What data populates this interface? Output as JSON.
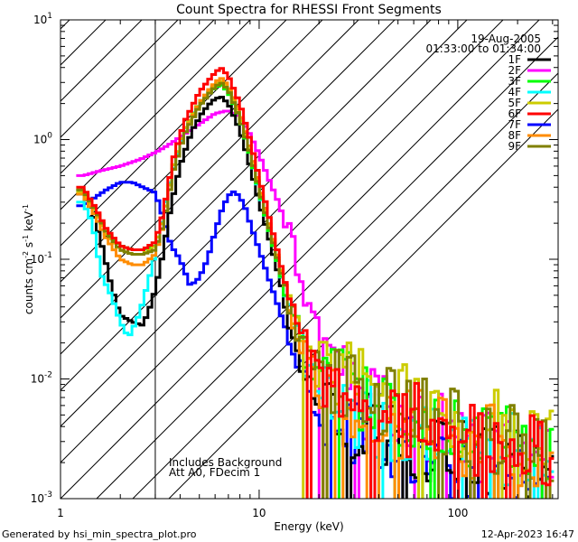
{
  "chart_data": {
    "type": "line",
    "title": "Count Spectra for RHESSI Front Segments",
    "xlabel": "Energy (keV)",
    "ylabel": {
      "main": "counts cm",
      "exp1": "-2",
      "mid1": " s",
      "exp2": "-1",
      "mid2": " keV",
      "exp3": "-1"
    },
    "x_scale": "log",
    "y_scale": "log",
    "xlim": [
      1.0,
      320.0
    ],
    "ylim": [
      0.001,
      10.0
    ],
    "x_ticks": [
      {
        "value": 1,
        "label": "1"
      },
      {
        "value": 10,
        "label": "10"
      },
      {
        "value": 100,
        "label": "100"
      }
    ],
    "y_ticks": [
      {
        "value": 0.001,
        "base": "10",
        "exp": "-3"
      },
      {
        "value": 0.01,
        "base": "10",
        "exp": "-2"
      },
      {
        "value": 0.1,
        "base": "10",
        "exp": "-1"
      },
      {
        "value": 1,
        "base": "10",
        "exp": "0"
      },
      {
        "value": 10,
        "base": "10",
        "exp": "1"
      }
    ],
    "shaded_region": {
      "x_range": [
        1.0,
        3.0
      ],
      "style": "hatched"
    },
    "annotations": {
      "date": "19-Aug-2005",
      "time_range": "01:33:00 to 01:34:00",
      "background_note": "Includes Background",
      "attenuator_note": "Att A0, FDecim 1"
    },
    "series": [
      {
        "name": "1F",
        "color": "#000000",
        "base": [
          [
            1.3,
            0.35
          ],
          [
            1.45,
            0.25
          ],
          [
            1.6,
            0.14
          ],
          [
            1.8,
            0.06
          ],
          [
            2.0,
            0.034
          ],
          [
            2.3,
            0.03
          ],
          [
            2.6,
            0.028
          ],
          [
            2.9,
            0.045
          ],
          [
            3.2,
            0.09
          ],
          [
            3.6,
            0.28
          ],
          [
            4.0,
            0.6
          ],
          [
            4.6,
            1.2
          ],
          [
            5.2,
            1.7
          ],
          [
            5.8,
            2.1
          ],
          [
            6.4,
            2.3
          ],
          [
            7.0,
            2.0
          ],
          [
            8.0,
            1.2
          ],
          [
            9.0,
            0.6
          ],
          [
            10.0,
            0.3
          ],
          [
            11.0,
            0.17
          ],
          [
            12.5,
            0.075
          ],
          [
            14.0,
            0.035
          ],
          [
            16.0,
            0.017
          ],
          [
            18.0,
            0.01
          ],
          [
            20.0,
            0.008
          ],
          [
            25.0,
            0.0055
          ],
          [
            30.0,
            0.0045
          ],
          [
            40.0,
            0.0038
          ],
          [
            50.0,
            0.0033
          ],
          [
            70.0,
            0.0028
          ],
          [
            100.0,
            0.0024
          ],
          [
            150.0,
            0.0021
          ],
          [
            200.0,
            0.0019
          ],
          [
            300.0,
            0.0016
          ]
        ]
      },
      {
        "name": "2F",
        "color": "#ff00ff",
        "base": [
          [
            1.3,
            0.5
          ],
          [
            1.6,
            0.55
          ],
          [
            2.0,
            0.6
          ],
          [
            2.5,
            0.68
          ],
          [
            3.0,
            0.78
          ],
          [
            3.5,
            0.9
          ],
          [
            4.0,
            1.05
          ],
          [
            5.0,
            1.35
          ],
          [
            6.0,
            1.65
          ],
          [
            7.0,
            1.75
          ],
          [
            8.0,
            1.55
          ],
          [
            9.0,
            1.1
          ],
          [
            10.0,
            0.75
          ],
          [
            11.0,
            0.5
          ],
          [
            12.5,
            0.3
          ],
          [
            14.0,
            0.17
          ],
          [
            16.0,
            0.08
          ],
          [
            18.0,
            0.04
          ],
          [
            20.0,
            0.02
          ],
          [
            25.0,
            0.01
          ],
          [
            30.0,
            0.0075
          ],
          [
            40.0,
            0.0055
          ],
          [
            60.0,
            0.0042
          ],
          [
            100.0,
            0.0032
          ],
          [
            200.0,
            0.0025
          ],
          [
            300.0,
            0.0021
          ]
        ]
      },
      {
        "name": "3F",
        "color": "#00ff00",
        "base": [
          [
            1.3,
            0.38
          ],
          [
            1.5,
            0.25
          ],
          [
            1.7,
            0.17
          ],
          [
            2.0,
            0.13
          ],
          [
            2.3,
            0.12
          ],
          [
            2.6,
            0.12
          ],
          [
            3.0,
            0.13
          ],
          [
            3.3,
            0.22
          ],
          [
            3.7,
            0.6
          ],
          [
            4.2,
            1.2
          ],
          [
            5.0,
            2.0
          ],
          [
            5.8,
            2.6
          ],
          [
            6.4,
            2.9
          ],
          [
            7.0,
            2.5
          ],
          [
            8.0,
            1.5
          ],
          [
            9.0,
            0.75
          ],
          [
            10.0,
            0.38
          ],
          [
            11.0,
            0.2
          ],
          [
            12.5,
            0.09
          ],
          [
            14.0,
            0.042
          ],
          [
            16.0,
            0.022
          ],
          [
            18.0,
            0.014
          ],
          [
            20.0,
            0.011
          ],
          [
            25.0,
            0.009
          ],
          [
            30.0,
            0.0075
          ],
          [
            40.0,
            0.0062
          ],
          [
            60.0,
            0.005
          ],
          [
            100.0,
            0.0038
          ],
          [
            200.0,
            0.0028
          ],
          [
            300.0,
            0.0023
          ]
        ]
      },
      {
        "name": "4F",
        "color": "#00ffff",
        "base": [
          [
            1.3,
            0.3
          ],
          [
            1.45,
            0.2
          ],
          [
            1.6,
            0.075
          ],
          [
            1.8,
            0.05
          ],
          [
            2.0,
            0.03
          ],
          [
            2.2,
            0.022
          ],
          [
            2.5,
            0.035
          ],
          [
            2.8,
            0.07
          ],
          [
            3.1,
            0.14
          ],
          [
            3.5,
            0.4
          ],
          [
            4.0,
            0.9
          ],
          [
            4.6,
            1.6
          ],
          [
            5.2,
            2.2
          ],
          [
            5.8,
            2.7
          ],
          [
            6.4,
            3.0
          ],
          [
            7.0,
            2.6
          ],
          [
            8.0,
            1.5
          ],
          [
            9.0,
            0.75
          ],
          [
            10.0,
            0.37
          ],
          [
            11.0,
            0.2
          ],
          [
            12.5,
            0.09
          ],
          [
            14.0,
            0.04
          ],
          [
            16.0,
            0.02
          ],
          [
            18.0,
            0.012
          ],
          [
            20.0,
            0.009
          ],
          [
            25.0,
            0.0065
          ],
          [
            30.0,
            0.0055
          ],
          [
            40.0,
            0.0046
          ],
          [
            60.0,
            0.0038
          ],
          [
            100.0,
            0.003
          ],
          [
            200.0,
            0.0024
          ],
          [
            300.0,
            0.002
          ]
        ]
      },
      {
        "name": "5F",
        "color": "#cccc00",
        "base": [
          [
            1.3,
            0.36
          ],
          [
            1.5,
            0.25
          ],
          [
            1.7,
            0.16
          ],
          [
            2.0,
            0.12
          ],
          [
            2.3,
            0.11
          ],
          [
            2.6,
            0.11
          ],
          [
            3.0,
            0.13
          ],
          [
            3.3,
            0.22
          ],
          [
            3.7,
            0.6
          ],
          [
            4.2,
            1.2
          ],
          [
            5.0,
            2.0
          ],
          [
            5.8,
            2.7
          ],
          [
            6.4,
            3.1
          ],
          [
            7.0,
            2.7
          ],
          [
            8.0,
            1.6
          ],
          [
            9.0,
            0.8
          ],
          [
            10.0,
            0.4
          ],
          [
            11.0,
            0.22
          ],
          [
            12.5,
            0.1
          ],
          [
            14.0,
            0.05
          ],
          [
            16.0,
            0.026
          ],
          [
            18.0,
            0.017
          ],
          [
            20.0,
            0.013
          ],
          [
            25.0,
            0.011
          ],
          [
            30.0,
            0.0095
          ],
          [
            40.0,
            0.008
          ],
          [
            60.0,
            0.0065
          ],
          [
            100.0,
            0.0048
          ],
          [
            200.0,
            0.0035
          ],
          [
            300.0,
            0.0028
          ]
        ]
      },
      {
        "name": "6F",
        "color": "#ff0000",
        "base": [
          [
            1.3,
            0.4
          ],
          [
            1.5,
            0.27
          ],
          [
            1.7,
            0.18
          ],
          [
            2.0,
            0.13
          ],
          [
            2.3,
            0.12
          ],
          [
            2.6,
            0.12
          ],
          [
            3.0,
            0.14
          ],
          [
            3.3,
            0.25
          ],
          [
            3.7,
            0.7
          ],
          [
            4.2,
            1.4
          ],
          [
            5.0,
            2.5
          ],
          [
            5.8,
            3.4
          ],
          [
            6.4,
            4.0
          ],
          [
            7.0,
            3.4
          ],
          [
            8.0,
            2.0
          ],
          [
            9.0,
            1.0
          ],
          [
            10.0,
            0.48
          ],
          [
            11.0,
            0.26
          ],
          [
            12.5,
            0.11
          ],
          [
            14.0,
            0.05
          ],
          [
            16.0,
            0.025
          ],
          [
            18.0,
            0.015
          ],
          [
            20.0,
            0.011
          ],
          [
            25.0,
            0.008
          ],
          [
            30.0,
            0.0068
          ],
          [
            40.0,
            0.0056
          ],
          [
            60.0,
            0.0045
          ],
          [
            100.0,
            0.0035
          ],
          [
            200.0,
            0.0027
          ],
          [
            300.0,
            0.0022
          ]
        ]
      },
      {
        "name": "7F",
        "color": "#0000ff",
        "base": [
          [
            1.3,
            0.28
          ],
          [
            1.5,
            0.33
          ],
          [
            1.7,
            0.38
          ],
          [
            2.0,
            0.44
          ],
          [
            2.3,
            0.44
          ],
          [
            2.6,
            0.4
          ],
          [
            3.0,
            0.36
          ],
          [
            3.3,
            0.22
          ],
          [
            3.6,
            0.13
          ],
          [
            4.0,
            0.1
          ],
          [
            4.5,
            0.06
          ],
          [
            5.0,
            0.07
          ],
          [
            5.5,
            0.1
          ],
          [
            6.0,
            0.17
          ],
          [
            6.5,
            0.26
          ],
          [
            7.0,
            0.34
          ],
          [
            7.5,
            0.37
          ],
          [
            8.0,
            0.33
          ],
          [
            8.5,
            0.27
          ],
          [
            9.0,
            0.2
          ],
          [
            10.0,
            0.12
          ],
          [
            11.0,
            0.075
          ],
          [
            12.5,
            0.04
          ],
          [
            14.0,
            0.022
          ],
          [
            16.0,
            0.012
          ],
          [
            18.0,
            0.007
          ],
          [
            20.0,
            0.005
          ],
          [
            25.0,
            0.0035
          ],
          [
            30.0,
            0.003
          ],
          [
            40.0,
            0.0026
          ],
          [
            60.0,
            0.0023
          ],
          [
            100.0,
            0.002
          ],
          [
            200.0,
            0.0018
          ],
          [
            300.0,
            0.0016
          ]
        ]
      },
      {
        "name": "8F",
        "color": "#ff8c00",
        "base": [
          [
            1.3,
            0.35
          ],
          [
            1.5,
            0.23
          ],
          [
            1.7,
            0.15
          ],
          [
            2.0,
            0.1
          ],
          [
            2.3,
            0.09
          ],
          [
            2.6,
            0.09
          ],
          [
            3.0,
            0.11
          ],
          [
            3.3,
            0.2
          ],
          [
            3.7,
            0.55
          ],
          [
            4.2,
            1.1
          ],
          [
            5.0,
            2.0
          ],
          [
            5.8,
            2.8
          ],
          [
            6.4,
            3.3
          ],
          [
            7.0,
            2.8
          ],
          [
            8.0,
            1.7
          ],
          [
            9.0,
            0.85
          ],
          [
            10.0,
            0.42
          ],
          [
            11.0,
            0.23
          ],
          [
            12.5,
            0.1
          ],
          [
            14.0,
            0.045
          ],
          [
            16.0,
            0.022
          ],
          [
            18.0,
            0.013
          ],
          [
            20.0,
            0.0095
          ],
          [
            25.0,
            0.0072
          ],
          [
            30.0,
            0.006
          ],
          [
            40.0,
            0.005
          ],
          [
            60.0,
            0.0041
          ],
          [
            100.0,
            0.0033
          ],
          [
            200.0,
            0.0026
          ],
          [
            300.0,
            0.0021
          ]
        ]
      },
      {
        "name": "9F",
        "color": "#808000",
        "base": [
          [
            1.3,
            0.38
          ],
          [
            1.5,
            0.26
          ],
          [
            1.7,
            0.17
          ],
          [
            2.0,
            0.12
          ],
          [
            2.3,
            0.11
          ],
          [
            2.6,
            0.11
          ],
          [
            3.0,
            0.12
          ],
          [
            3.3,
            0.2
          ],
          [
            3.7,
            0.55
          ],
          [
            4.2,
            1.1
          ],
          [
            5.0,
            1.9
          ],
          [
            5.8,
            2.6
          ],
          [
            6.4,
            3.0
          ],
          [
            7.0,
            2.6
          ],
          [
            8.0,
            1.5
          ],
          [
            9.0,
            0.78
          ],
          [
            10.0,
            0.39
          ],
          [
            11.0,
            0.21
          ],
          [
            12.5,
            0.095
          ],
          [
            14.0,
            0.045
          ],
          [
            16.0,
            0.024
          ],
          [
            18.0,
            0.015
          ],
          [
            20.0,
            0.0115
          ],
          [
            25.0,
            0.009
          ],
          [
            30.0,
            0.0078
          ],
          [
            40.0,
            0.0065
          ],
          [
            60.0,
            0.0053
          ],
          [
            100.0,
            0.004
          ],
          [
            200.0,
            0.003
          ],
          [
            300.0,
            0.0024
          ]
        ]
      }
    ]
  },
  "footer": {
    "generated_by": "Generated by hsi_min_spectra_plot.pro",
    "date": "12-Apr-2023 16:47"
  }
}
